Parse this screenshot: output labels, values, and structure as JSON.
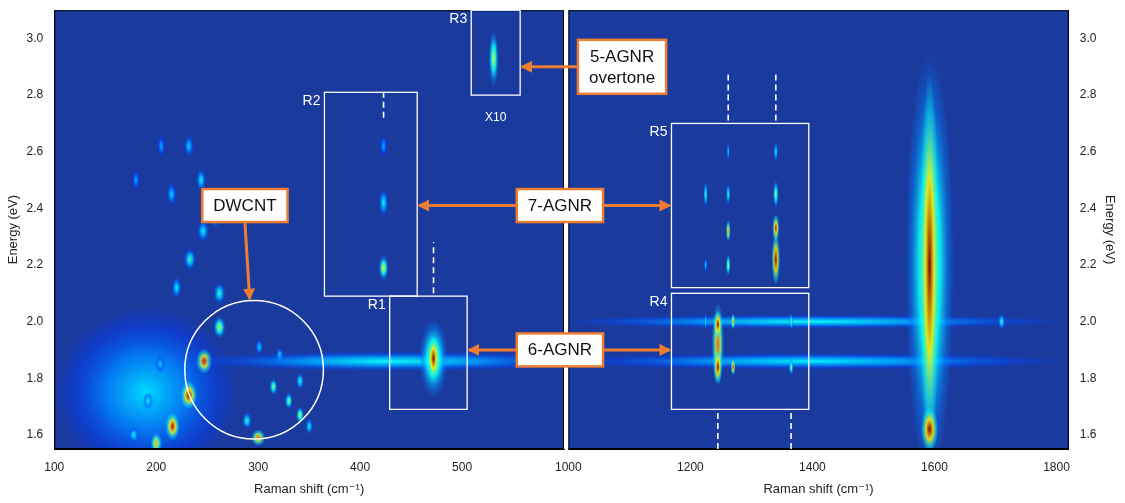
{
  "chart_data": [
    {
      "type": "heatmap",
      "x_label": "Raman shift (cm⁻¹)",
      "y_label": "Energy (eV)",
      "xlim": [
        100,
        600
      ],
      "xticks": [
        100,
        200,
        300,
        400,
        500
      ],
      "ylim": [
        1.55,
        3.1
      ],
      "yticks": [
        1.6,
        1.8,
        {
          "value": 2,
          "label": "2.0"
        },
        2.2,
        2.4,
        2.6,
        2.8,
        {
          "value": 3,
          "label": "3.0"
        }
      ],
      "grid": false,
      "color": "#1a3a9e",
      "spots": [
        {
          "x": 190,
          "y": 1.75,
          "dx": 90,
          "dy": 0.3,
          "level": 0.25
        },
        {
          "x": 178,
          "y": 1.6,
          "dx": 5,
          "dy": 0.03,
          "level": 0.3
        },
        {
          "x": 192,
          "y": 1.72,
          "dx": 5,
          "dy": 0.03,
          "level": 0.3
        },
        {
          "x": 204,
          "y": 1.85,
          "dx": 5,
          "dy": 0.03,
          "level": 0.25
        },
        {
          "x": 220,
          "y": 2.12,
          "dx": 5,
          "dy": 0.04,
          "level": 0.3
        },
        {
          "x": 233,
          "y": 2.22,
          "dx": 6,
          "dy": 0.04,
          "level": 0.35
        },
        {
          "x": 246,
          "y": 2.32,
          "dx": 6,
          "dy": 0.04,
          "level": 0.3
        },
        {
          "x": 258,
          "y": 2.38,
          "dx": 5,
          "dy": 0.05,
          "level": 0.4
        },
        {
          "x": 244,
          "y": 2.5,
          "dx": 5,
          "dy": 0.04,
          "level": 0.3
        },
        {
          "x": 232,
          "y": 2.62,
          "dx": 5,
          "dy": 0.04,
          "level": 0.25
        },
        {
          "x": 215,
          "y": 2.45,
          "dx": 5,
          "dy": 0.04,
          "level": 0.25
        },
        {
          "x": 205,
          "y": 2.62,
          "dx": 4,
          "dy": 0.04,
          "level": 0.2
        },
        {
          "x": 180,
          "y": 2.5,
          "dx": 4,
          "dy": 0.04,
          "level": 0.2
        },
        {
          "x": 262,
          "y": 2.1,
          "dx": 6,
          "dy": 0.04,
          "level": 0.35
        },
        {
          "x": 200,
          "y": 1.57,
          "dx": 6,
          "dy": 0.04,
          "level": 0.65
        },
        {
          "x": 216,
          "y": 1.63,
          "dx": 7,
          "dy": 0.05,
          "level": 0.9
        },
        {
          "x": 232,
          "y": 1.74,
          "dx": 8,
          "dy": 0.05,
          "level": 1.0
        },
        {
          "x": 247,
          "y": 1.86,
          "dx": 8,
          "dy": 0.045,
          "level": 0.85
        },
        {
          "x": 262,
          "y": 1.98,
          "dx": 6,
          "dy": 0.04,
          "level": 0.5
        },
        {
          "x": 300,
          "y": 1.59,
          "dx": 7,
          "dy": 0.03,
          "level": 0.75
        },
        {
          "x": 289,
          "y": 1.65,
          "dx": 5,
          "dy": 0.03,
          "level": 0.35
        },
        {
          "x": 315,
          "y": 1.77,
          "dx": 4,
          "dy": 0.03,
          "level": 0.45
        },
        {
          "x": 330,
          "y": 1.72,
          "dx": 4,
          "dy": 0.03,
          "level": 0.45
        },
        {
          "x": 341,
          "y": 1.67,
          "dx": 4,
          "dy": 0.03,
          "level": 0.5
        },
        {
          "x": 341,
          "y": 1.79,
          "dx": 4,
          "dy": 0.03,
          "level": 0.35
        },
        {
          "x": 321,
          "y": 1.88,
          "dx": 4,
          "dy": 0.03,
          "level": 0.3
        },
        {
          "x": 301,
          "y": 1.91,
          "dx": 4,
          "dy": 0.03,
          "level": 0.25
        },
        {
          "x": 350,
          "y": 1.63,
          "dx": 4,
          "dy": 0.03,
          "level": 0.3
        },
        {
          "x": 430,
          "y": 1.86,
          "dx": 200,
          "dy": 0.035,
          "level": 0.3
        },
        {
          "x": 472,
          "y": 1.87,
          "dx": 14,
          "dy": 0.14,
          "level": 0.5
        },
        {
          "x": 472,
          "y": 1.87,
          "dx": 6,
          "dy": 0.08,
          "level": 1.0
        },
        {
          "x": 423,
          "y": 2.19,
          "dx": 5,
          "dy": 0.045,
          "level": 0.55
        },
        {
          "x": 423,
          "y": 2.42,
          "dx": 5,
          "dy": 0.05,
          "level": 0.3
        },
        {
          "x": 423,
          "y": 2.62,
          "dx": 4,
          "dy": 0.04,
          "level": 0.2
        },
        {
          "x": 531,
          "y": 2.93,
          "dx": 5,
          "dy": 0.1,
          "level": 0.5
        }
      ],
      "regions": [
        {
          "label": "R1",
          "x": [
            429,
            505
          ],
          "y": [
            1.69,
            2.09
          ]
        },
        {
          "label": "R2",
          "x": [
            365,
            456
          ],
          "y": [
            2.09,
            2.81
          ]
        },
        {
          "label": "R3",
          "x": [
            509,
            557
          ],
          "y": [
            2.8,
            3.1
          ]
        }
      ],
      "lines": [
        {
          "x": 472,
          "y": [
            2.1,
            2.28
          ],
          "line_style": "dashed"
        },
        {
          "x": 423,
          "y": [
            2.72,
            2.82
          ],
          "line_style": "dashed"
        }
      ],
      "texts": [
        {
          "text": "X10",
          "x": 533,
          "y": 2.71
        }
      ],
      "callouts": [
        {
          "text": "DWCNT",
          "at": [
            287,
            2.41
          ],
          "circle": {
            "x": 296,
            "y": 1.83,
            "r": 68
          }
        },
        {
          "text": "7-AGNR",
          "at": [
            596,
            2.41
          ],
          "regions": [
            "R2",
            "R5"
          ]
        },
        {
          "text": "6-AGNR",
          "at": [
            596,
            1.9
          ],
          "regions": [
            "R1",
            "R4"
          ]
        }
      ]
    },
    {
      "type": "heatmap",
      "x_label": "Raman shift (cm⁻¹)",
      "y_label": "Energy (eV)",
      "xlim": [
        1000,
        1820
      ],
      "xticks": [
        1000,
        1200,
        1400,
        1600,
        1800
      ],
      "ylim": [
        1.55,
        3.1
      ],
      "yticks": [
        1.6,
        1.8,
        {
          "value": 2,
          "label": "2.0"
        },
        2.2,
        2.4,
        2.6,
        2.8,
        {
          "value": 3,
          "label": "3.0"
        }
      ],
      "grid": false,
      "color": "#1a3a9e",
      "spots": [
        {
          "x": 1400,
          "y": 2.0,
          "dx": 420,
          "dy": 0.025,
          "level": 0.3
        },
        {
          "x": 1400,
          "y": 1.86,
          "dx": 420,
          "dy": 0.03,
          "level": 0.28
        },
        {
          "x": 1592,
          "y": 2.2,
          "dx": 40,
          "dy": 0.75,
          "level": 0.5
        },
        {
          "x": 1592,
          "y": 2.2,
          "dx": 16,
          "dy": 0.68,
          "level": 1.0
        },
        {
          "x": 1592,
          "y": 1.62,
          "dx": 14,
          "dy": 0.08,
          "level": 1.0
        },
        {
          "x": 1245,
          "y": 1.92,
          "dx": 10,
          "dy": 0.15,
          "level": 0.75
        },
        {
          "x": 1245,
          "y": 1.84,
          "dx": 7,
          "dy": 0.06,
          "level": 1.0
        },
        {
          "x": 1245,
          "y": 1.99,
          "dx": 7,
          "dy": 0.05,
          "level": 1.0
        },
        {
          "x": 1270,
          "y": 1.84,
          "dx": 4,
          "dy": 0.03,
          "level": 0.85
        },
        {
          "x": 1270,
          "y": 2.0,
          "dx": 4,
          "dy": 0.03,
          "level": 0.7
        },
        {
          "x": 1365,
          "y": 1.84,
          "dx": 4,
          "dy": 0.03,
          "level": 0.45
        },
        {
          "x": 1365,
          "y": 2.0,
          "dx": 4,
          "dy": 0.03,
          "level": 0.4
        },
        {
          "x": 1225,
          "y": 2.0,
          "dx": 3,
          "dy": 0.03,
          "level": 0.3
        },
        {
          "x": 1340,
          "y": 2.22,
          "dx": 7,
          "dy": 0.09,
          "level": 1.0
        },
        {
          "x": 1340,
          "y": 2.33,
          "dx": 6,
          "dy": 0.05,
          "level": 0.85
        },
        {
          "x": 1340,
          "y": 2.45,
          "dx": 5,
          "dy": 0.05,
          "level": 0.45
        },
        {
          "x": 1340,
          "y": 2.6,
          "dx": 4,
          "dy": 0.04,
          "level": 0.3
        },
        {
          "x": 1262,
          "y": 2.32,
          "dx": 4,
          "dy": 0.04,
          "level": 0.7
        },
        {
          "x": 1262,
          "y": 2.2,
          "dx": 4,
          "dy": 0.04,
          "level": 0.5
        },
        {
          "x": 1262,
          "y": 2.45,
          "dx": 4,
          "dy": 0.04,
          "level": 0.35
        },
        {
          "x": 1262,
          "y": 2.6,
          "dx": 3,
          "dy": 0.04,
          "level": 0.25
        },
        {
          "x": 1225,
          "y": 2.45,
          "dx": 4,
          "dy": 0.05,
          "level": 0.35
        },
        {
          "x": 1225,
          "y": 2.2,
          "dx": 3,
          "dy": 0.03,
          "level": 0.25
        },
        {
          "x": 1710,
          "y": 2.0,
          "dx": 6,
          "dy": 0.03,
          "level": 0.35
        }
      ],
      "regions": [
        {
          "label": "R4",
          "x": [
            1169,
            1394
          ],
          "y": [
            1.69,
            2.1
          ]
        },
        {
          "label": "R5",
          "x": [
            1169,
            1394
          ],
          "y": [
            2.12,
            2.7
          ]
        }
      ],
      "lines": [
        {
          "x": 1245,
          "y": [
            1.55,
            1.68
          ],
          "line_style": "dashed"
        },
        {
          "x": 1365,
          "y": [
            1.55,
            1.68
          ],
          "line_style": "dashed"
        },
        {
          "x": 1262,
          "y": [
            2.71,
            2.88
          ],
          "line_style": "dashed"
        },
        {
          "x": 1340,
          "y": [
            2.71,
            2.88
          ],
          "line_style": "dashed"
        }
      ],
      "texts": [],
      "callouts": [
        {
          "text": "5-AGNR overtone",
          "at": [
            1088,
            2.9
          ],
          "regions": [
            "R3"
          ]
        }
      ]
    }
  ]
}
